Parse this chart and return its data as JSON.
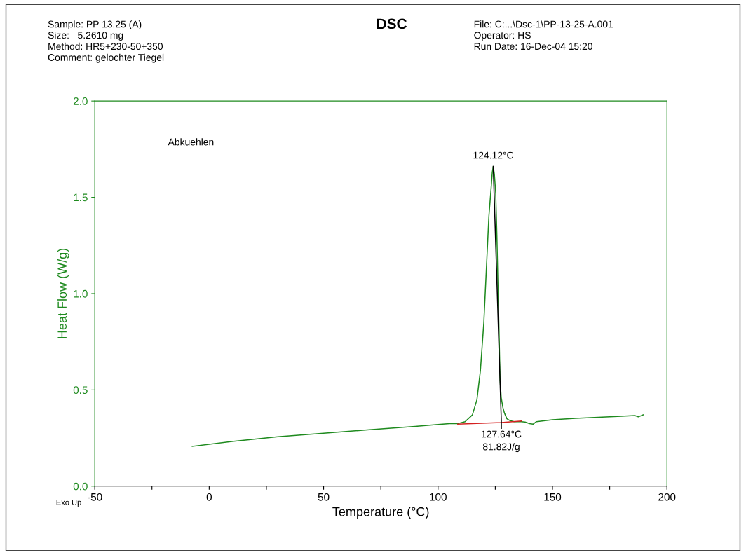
{
  "chart_data": {
    "type": "line",
    "title": "DSC",
    "xlabel": "Temperature (°C)",
    "ylabel": "Heat Flow (W/g)",
    "xlim": [
      -50,
      200
    ],
    "xticks": [
      -50,
      {
        "value": -25,
        "label": null
      },
      0,
      {
        "value": 25,
        "label": null
      },
      50,
      {
        "value": 75,
        "label": null
      },
      100,
      {
        "value": 125,
        "label": null
      },
      150,
      {
        "value": 175,
        "label": null
      },
      200
    ],
    "ylim": [
      0,
      2
    ],
    "yticks": [
      {
        "value": 0,
        "label": "0.0"
      },
      {
        "value": 0.5,
        "label": "0.5"
      },
      {
        "value": 1,
        "label": "1.0"
      },
      {
        "value": 1.5,
        "label": "1.5"
      },
      {
        "value": 2,
        "label": "2.0"
      }
    ],
    "grid": false,
    "legend": false,
    "series": [
      {
        "color": "#1e8a1e",
        "x": [
          -7.4,
          10,
          30,
          50,
          70,
          90,
          100,
          105,
          108.6,
          111.8,
          115,
          117,
          118.5,
          120,
          121,
          122.2,
          123.2,
          123.7,
          124.12,
          124.6,
          125.2,
          125.7,
          126.2,
          126.7,
          127.1,
          127.6,
          128.3,
          129,
          130.1,
          131.5,
          133.2,
          136.3,
          138,
          140,
          141.5,
          143,
          150,
          160,
          170,
          180,
          186,
          187.5,
          189.6
        ],
        "values": [
          0.207,
          0.232,
          0.257,
          0.275,
          0.293,
          0.31,
          0.32,
          0.325,
          0.325,
          0.335,
          0.37,
          0.45,
          0.6,
          0.85,
          1.1,
          1.4,
          1.55,
          1.63,
          1.66,
          1.62,
          1.52,
          1.3,
          1.03,
          0.78,
          0.55,
          0.46,
          0.41,
          0.38,
          0.35,
          0.34,
          0.335,
          0.335,
          0.333,
          0.325,
          0.322,
          0.335,
          0.345,
          0.352,
          0.358,
          0.363,
          0.367,
          0.36,
          0.37
        ]
      },
      {
        "color": "#d42020",
        "x": [
          108.6,
          127.64,
          136.3
        ],
        "values": [
          0.322,
          0.33,
          0.338
        ]
      },
      {
        "color": "#000000",
        "x": [
          124.12,
          127.64,
          127.64
        ],
        "values": [
          1.66,
          0.338,
          0.3
        ]
      }
    ],
    "annotations": [
      "Sample: PP 13.25 (A)",
      "Size:   5.2610 mg",
      "Method: HR5+230-50+350",
      "Comment: gelochter Tiegel",
      "File: C:...\\Dsc-1\\PP-13-25-A.001",
      "Operator: HS",
      "Run Date: 16-Dec-04 15:20",
      "Abkuehlen",
      "Exo Up",
      {
        "text": "124.12°C",
        "x": 124.12,
        "y": 1.66
      },
      {
        "text": "127.64°C\n81.82J/g",
        "x": 127.64,
        "y": 0.33
      }
    ]
  }
}
